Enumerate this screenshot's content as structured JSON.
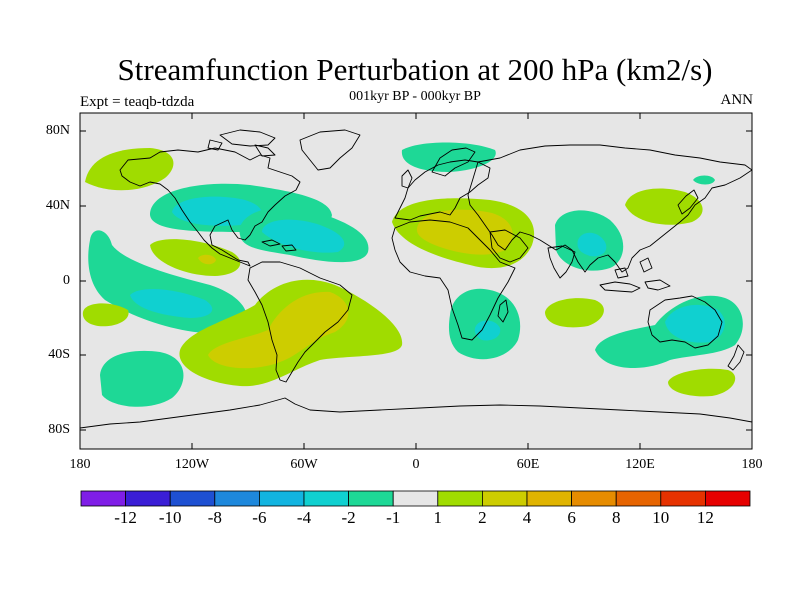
{
  "title": "Streamfunction Perturbation at 200 hPa (km2/s)",
  "subtitle": "001kyr BP - 000kyr BP",
  "left_string": "Expt = teaqb-tdzda",
  "right_string": "ANN",
  "lat_labels": [
    "80N",
    "40N",
    "0",
    "40S",
    "80S"
  ],
  "lon_labels": [
    "180",
    "120W",
    "60W",
    "0",
    "60E",
    "120E",
    "180"
  ],
  "colorbar": {
    "colors": [
      "#7f1ee6",
      "#3a1ed6",
      "#1e50d2",
      "#1e88dc",
      "#12b4e0",
      "#10d0d0",
      "#1ed896",
      "#e6e6e6",
      "#a0dc00",
      "#cdcd00",
      "#e0b400",
      "#e68c00",
      "#e66400",
      "#e63200",
      "#e60000"
    ],
    "labels": [
      "-12",
      "-10",
      "-8",
      "-6",
      "-4",
      "-2",
      "-1",
      "1",
      "2",
      "4",
      "6",
      "8",
      "10",
      "12"
    ]
  }
}
